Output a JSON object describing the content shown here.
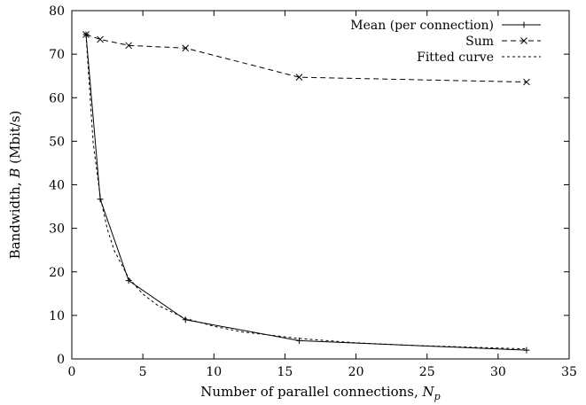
{
  "chart_data": {
    "type": "line",
    "title": "",
    "xlabel": "Number of parallel connections, ",
    "xlabel_var": "N",
    "xlabel_sub": "p",
    "ylabel": "Bandwidth, ",
    "ylabel_var": "B",
    "ylabel_unit": " (Mbit/s)",
    "xlim": [
      0,
      35
    ],
    "ylim": [
      0,
      80
    ],
    "xticks": [
      0,
      5,
      10,
      15,
      20,
      25,
      30,
      35
    ],
    "yticks": [
      0,
      10,
      20,
      30,
      40,
      50,
      60,
      70,
      80
    ],
    "grid": false,
    "legend": "top-right",
    "series": [
      {
        "name": "Mean (per connection)",
        "style": "solid",
        "marker": "plus",
        "x": [
          1,
          2,
          4,
          8,
          16,
          32
        ],
        "y": [
          74.5,
          36.7,
          18.0,
          9.0,
          4.2,
          2.0
        ]
      },
      {
        "name": "Sum",
        "style": "dashed",
        "marker": "cross",
        "x": [
          1,
          2,
          4,
          8,
          16,
          32
        ],
        "y": [
          74.5,
          73.4,
          72.0,
          71.4,
          64.7,
          63.6
        ]
      },
      {
        "name": "Fitted curve",
        "style": "dotted",
        "marker": "none",
        "x": [
          1,
          1.5,
          2,
          2.5,
          3,
          4,
          5,
          6,
          8,
          10,
          12,
          16,
          20,
          24,
          28,
          32
        ],
        "y": [
          74.5,
          49.7,
          37.3,
          29.8,
          24.8,
          18.6,
          14.9,
          12.4,
          9.3,
          7.5,
          6.2,
          4.7,
          3.7,
          3.1,
          2.7,
          2.3
        ]
      }
    ]
  }
}
